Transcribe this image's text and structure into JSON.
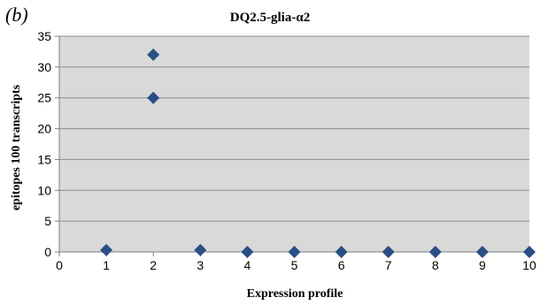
{
  "panel_label": "(b)",
  "chart_data": {
    "type": "scatter",
    "title": "DQ2.5-glia-α2",
    "xlabel": "Expression  profile",
    "ylabel": "epitopes 100 transcripts",
    "xlim": [
      0,
      10
    ],
    "ylim": [
      0,
      35
    ],
    "xticks": [
      0,
      1,
      2,
      3,
      4,
      5,
      6,
      7,
      8,
      9,
      10
    ],
    "yticks": [
      0,
      5,
      10,
      15,
      20,
      25,
      30,
      35
    ],
    "grid": true,
    "legend": "none",
    "marker": "diamond",
    "colors": {
      "marker": "#2a4f84",
      "plot_background": "#d9d9d9",
      "gridline": "#8c8c8c"
    },
    "series": [
      {
        "points": [
          {
            "x": 1,
            "y": 0.3
          },
          {
            "x": 2,
            "y": 32
          },
          {
            "x": 2,
            "y": 25
          },
          {
            "x": 3,
            "y": 0.3
          },
          {
            "x": 4,
            "y": 0
          },
          {
            "x": 5,
            "y": 0
          },
          {
            "x": 6,
            "y": 0
          },
          {
            "x": 7,
            "y": 0
          },
          {
            "x": 8,
            "y": 0
          },
          {
            "x": 9,
            "y": 0
          },
          {
            "x": 10,
            "y": 0
          }
        ]
      }
    ]
  }
}
